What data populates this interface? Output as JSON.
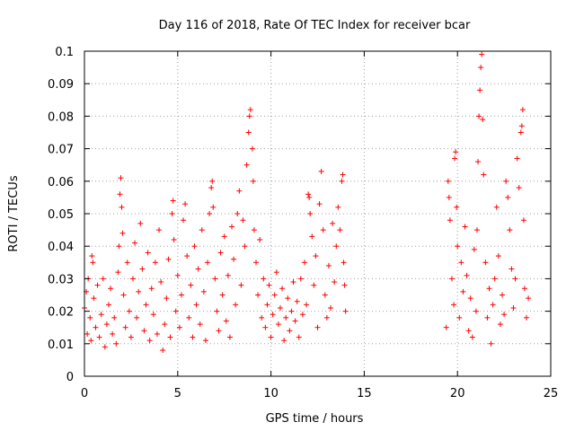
{
  "chart_data": {
    "type": "scatter",
    "title": "Day 116 of 2018, Rate Of TEC Index for receiver bcar",
    "xlabel": "GPS time / hours",
    "ylabel": "ROTI / TECUs",
    "xlim": [
      0,
      25
    ],
    "ylim": [
      0,
      0.1
    ],
    "x_ticks": [
      0,
      5,
      10,
      15,
      20,
      25
    ],
    "y_ticks": [
      0,
      0.01,
      0.02,
      0.03,
      0.04,
      0.05,
      0.06,
      0.07,
      0.08,
      0.09,
      0.1
    ],
    "x_tick_labels": [
      "0",
      "5",
      "10",
      "15",
      "20",
      "25"
    ],
    "y_tick_labels": [
      "0",
      "0.01",
      "0.02",
      "0.03",
      "0.04",
      "0.05",
      "0.06",
      "0.07",
      "0.08",
      "0.09",
      "0.1"
    ],
    "grid": true,
    "marker": "+",
    "marker_color": "#ff0000",
    "series": [
      {
        "name": "ROTI",
        "points": [
          [
            0.0,
            0.021
          ],
          [
            0.1,
            0.026
          ],
          [
            0.15,
            0.013
          ],
          [
            0.2,
            0.03
          ],
          [
            0.3,
            0.018
          ],
          [
            0.35,
            0.011
          ],
          [
            0.4,
            0.037
          ],
          [
            0.45,
            0.035
          ],
          [
            0.5,
            0.024
          ],
          [
            0.6,
            0.015
          ],
          [
            0.7,
            0.028
          ],
          [
            0.8,
            0.012
          ],
          [
            0.9,
            0.019
          ],
          [
            1.0,
            0.03
          ],
          [
            1.1,
            0.009
          ],
          [
            1.2,
            0.016
          ],
          [
            1.3,
            0.022
          ],
          [
            1.4,
            0.027
          ],
          [
            1.5,
            0.013
          ],
          [
            1.6,
            0.018
          ],
          [
            1.7,
            0.01
          ],
          [
            1.8,
            0.032
          ],
          [
            1.85,
            0.04
          ],
          [
            1.9,
            0.056
          ],
          [
            1.95,
            0.061
          ],
          [
            2.0,
            0.052
          ],
          [
            2.05,
            0.044
          ],
          [
            2.1,
            0.025
          ],
          [
            2.2,
            0.015
          ],
          [
            2.3,
            0.035
          ],
          [
            2.4,
            0.02
          ],
          [
            2.5,
            0.012
          ],
          [
            2.6,
            0.03
          ],
          [
            2.7,
            0.041
          ],
          [
            2.8,
            0.018
          ],
          [
            2.9,
            0.026
          ],
          [
            3.0,
            0.047
          ],
          [
            3.1,
            0.033
          ],
          [
            3.2,
            0.014
          ],
          [
            3.3,
            0.022
          ],
          [
            3.4,
            0.038
          ],
          [
            3.5,
            0.011
          ],
          [
            3.6,
            0.027
          ],
          [
            3.7,
            0.019
          ],
          [
            3.8,
            0.035
          ],
          [
            3.9,
            0.013
          ],
          [
            4.0,
            0.045
          ],
          [
            4.1,
            0.029
          ],
          [
            4.2,
            0.008
          ],
          [
            4.3,
            0.016
          ],
          [
            4.4,
            0.024
          ],
          [
            4.5,
            0.036
          ],
          [
            4.6,
            0.012
          ],
          [
            4.7,
            0.05
          ],
          [
            4.75,
            0.054
          ],
          [
            4.8,
            0.042
          ],
          [
            4.9,
            0.02
          ],
          [
            5.0,
            0.031
          ],
          [
            5.1,
            0.015
          ],
          [
            5.2,
            0.025
          ],
          [
            5.3,
            0.048
          ],
          [
            5.4,
            0.053
          ],
          [
            5.5,
            0.037
          ],
          [
            5.6,
            0.018
          ],
          [
            5.7,
            0.028
          ],
          [
            5.8,
            0.012
          ],
          [
            5.9,
            0.04
          ],
          [
            6.0,
            0.022
          ],
          [
            6.1,
            0.033
          ],
          [
            6.2,
            0.016
          ],
          [
            6.3,
            0.045
          ],
          [
            6.4,
            0.026
          ],
          [
            6.5,
            0.011
          ],
          [
            6.6,
            0.035
          ],
          [
            6.7,
            0.05
          ],
          [
            6.8,
            0.058
          ],
          [
            6.85,
            0.06
          ],
          [
            6.9,
            0.052
          ],
          [
            7.0,
            0.03
          ],
          [
            7.1,
            0.02
          ],
          [
            7.2,
            0.014
          ],
          [
            7.3,
            0.038
          ],
          [
            7.4,
            0.025
          ],
          [
            7.5,
            0.043
          ],
          [
            7.6,
            0.017
          ],
          [
            7.7,
            0.031
          ],
          [
            7.8,
            0.012
          ],
          [
            7.9,
            0.046
          ],
          [
            8.0,
            0.036
          ],
          [
            8.1,
            0.022
          ],
          [
            8.2,
            0.05
          ],
          [
            8.3,
            0.057
          ],
          [
            8.4,
            0.028
          ],
          [
            8.5,
            0.048
          ],
          [
            8.6,
            0.04
          ],
          [
            8.7,
            0.065
          ],
          [
            8.8,
            0.075
          ],
          [
            8.85,
            0.08
          ],
          [
            8.9,
            0.082
          ],
          [
            9.0,
            0.07
          ],
          [
            9.05,
            0.06
          ],
          [
            9.1,
            0.045
          ],
          [
            9.2,
            0.035
          ],
          [
            9.3,
            0.025
          ],
          [
            9.4,
            0.042
          ],
          [
            9.5,
            0.018
          ],
          [
            9.6,
            0.03
          ],
          [
            9.7,
            0.015
          ],
          [
            9.8,
            0.022
          ],
          [
            9.9,
            0.028
          ],
          [
            10.0,
            0.012
          ],
          [
            10.1,
            0.019
          ],
          [
            10.2,
            0.025
          ],
          [
            10.3,
            0.032
          ],
          [
            10.4,
            0.016
          ],
          [
            10.5,
            0.021
          ],
          [
            10.6,
            0.027
          ],
          [
            10.7,
            0.011
          ],
          [
            10.8,
            0.018
          ],
          [
            10.9,
            0.024
          ],
          [
            11.0,
            0.014
          ],
          [
            11.1,
            0.02
          ],
          [
            11.2,
            0.029
          ],
          [
            11.3,
            0.017
          ],
          [
            11.4,
            0.023
          ],
          [
            11.5,
            0.012
          ],
          [
            11.6,
            0.03
          ],
          [
            11.7,
            0.019
          ],
          [
            11.8,
            0.035
          ],
          [
            11.9,
            0.022
          ],
          [
            12.0,
            0.056
          ],
          [
            12.05,
            0.055
          ],
          [
            12.1,
            0.05
          ],
          [
            12.2,
            0.043
          ],
          [
            12.3,
            0.028
          ],
          [
            12.4,
            0.037
          ],
          [
            12.5,
            0.015
          ],
          [
            12.6,
            0.053
          ],
          [
            12.7,
            0.063
          ],
          [
            12.8,
            0.045
          ],
          [
            12.9,
            0.025
          ],
          [
            13.0,
            0.018
          ],
          [
            13.1,
            0.034
          ],
          [
            13.2,
            0.021
          ],
          [
            13.3,
            0.047
          ],
          [
            13.4,
            0.029
          ],
          [
            13.5,
            0.04
          ],
          [
            13.6,
            0.052
          ],
          [
            13.7,
            0.045
          ],
          [
            13.8,
            0.06
          ],
          [
            13.85,
            0.062
          ],
          [
            13.9,
            0.035
          ],
          [
            13.95,
            0.028
          ],
          [
            14.0,
            0.02
          ],
          [
            19.4,
            0.015
          ],
          [
            19.5,
            0.06
          ],
          [
            19.55,
            0.055
          ],
          [
            19.6,
            0.048
          ],
          [
            19.7,
            0.03
          ],
          [
            19.8,
            0.022
          ],
          [
            19.85,
            0.067
          ],
          [
            19.9,
            0.069
          ],
          [
            19.95,
            0.052
          ],
          [
            20.0,
            0.04
          ],
          [
            20.1,
            0.018
          ],
          [
            20.2,
            0.035
          ],
          [
            20.3,
            0.026
          ],
          [
            20.4,
            0.046
          ],
          [
            20.5,
            0.031
          ],
          [
            20.6,
            0.014
          ],
          [
            20.7,
            0.024
          ],
          [
            20.8,
            0.012
          ],
          [
            20.9,
            0.039
          ],
          [
            21.0,
            0.02
          ],
          [
            21.05,
            0.045
          ],
          [
            21.1,
            0.066
          ],
          [
            21.15,
            0.08
          ],
          [
            21.2,
            0.088
          ],
          [
            21.25,
            0.095
          ],
          [
            21.3,
            0.099
          ],
          [
            21.35,
            0.079
          ],
          [
            21.4,
            0.062
          ],
          [
            21.5,
            0.035
          ],
          [
            21.6,
            0.018
          ],
          [
            21.7,
            0.027
          ],
          [
            21.8,
            0.01
          ],
          [
            21.9,
            0.022
          ],
          [
            22.0,
            0.03
          ],
          [
            22.1,
            0.052
          ],
          [
            22.2,
            0.037
          ],
          [
            22.3,
            0.016
          ],
          [
            22.4,
            0.025
          ],
          [
            22.5,
            0.019
          ],
          [
            22.6,
            0.06
          ],
          [
            22.7,
            0.055
          ],
          [
            22.8,
            0.045
          ],
          [
            22.9,
            0.033
          ],
          [
            23.0,
            0.021
          ],
          [
            23.1,
            0.03
          ],
          [
            23.2,
            0.067
          ],
          [
            23.3,
            0.058
          ],
          [
            23.4,
            0.075
          ],
          [
            23.45,
            0.077
          ],
          [
            23.5,
            0.082
          ],
          [
            23.55,
            0.048
          ],
          [
            23.6,
            0.027
          ],
          [
            23.7,
            0.018
          ],
          [
            23.8,
            0.024
          ]
        ]
      }
    ]
  }
}
